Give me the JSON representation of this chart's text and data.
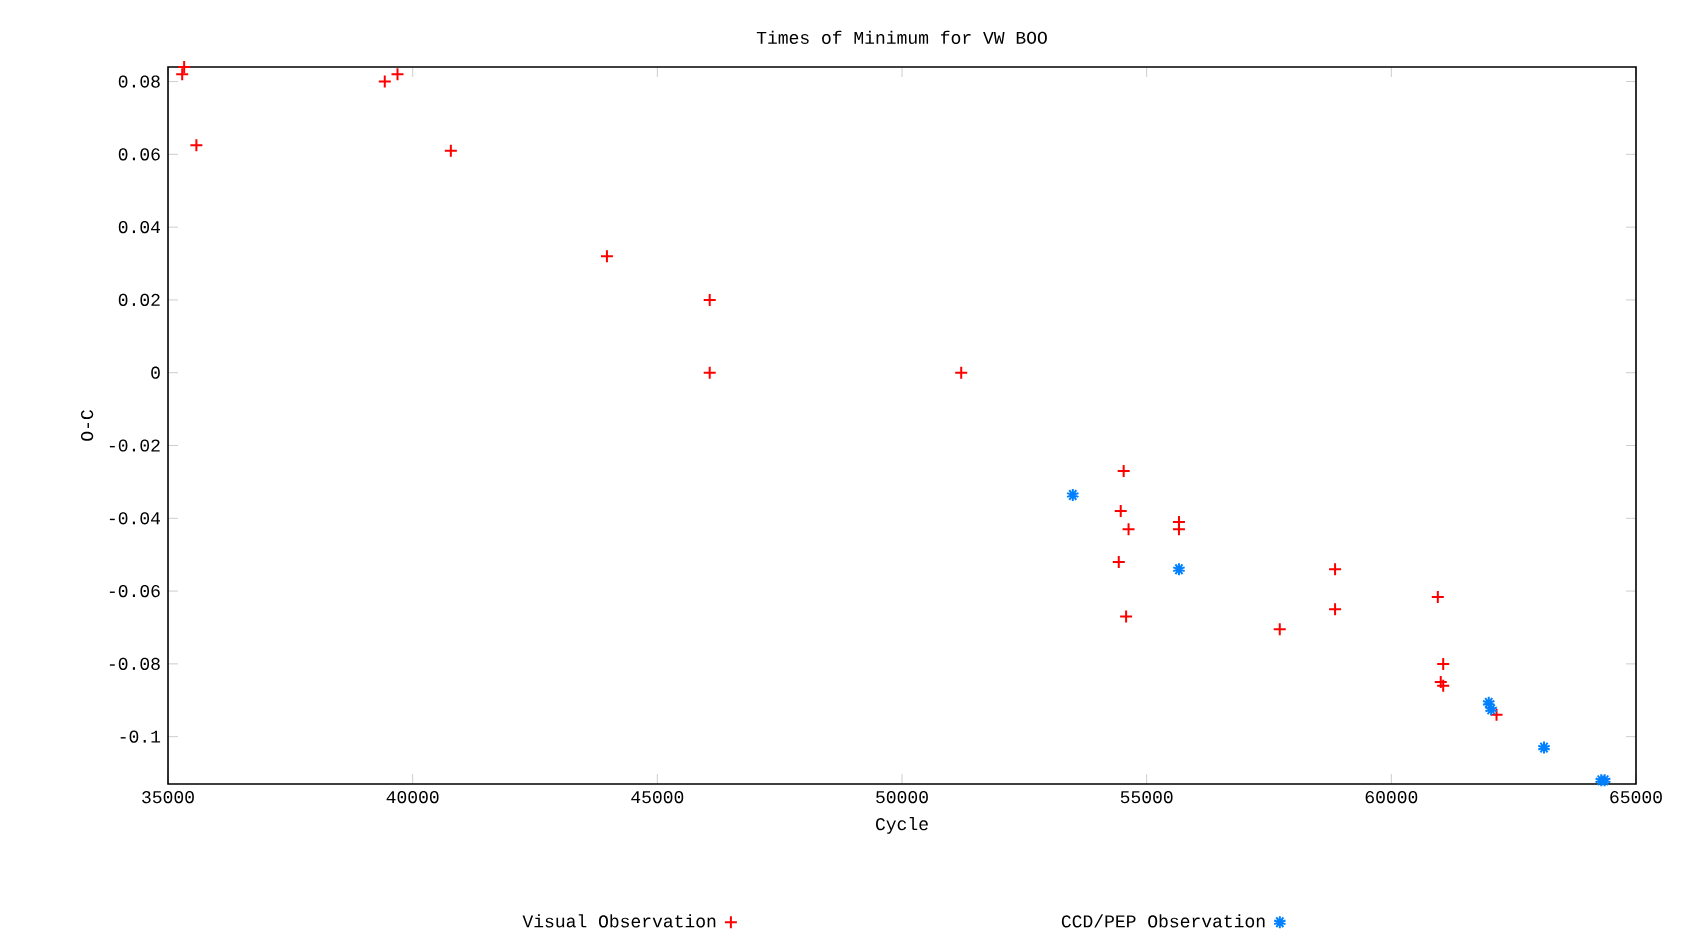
{
  "chart_data": {
    "type": "scatter",
    "title": "Times of Minimum for VW BOO",
    "xlabel": "Cycle",
    "ylabel": "O-C",
    "xlim": [
      35000,
      65000
    ],
    "ylim": [
      -0.113,
      0.084
    ],
    "xticks": [
      35000,
      40000,
      45000,
      50000,
      55000,
      60000,
      65000
    ],
    "yticks": [
      -0.1,
      -0.08,
      -0.06,
      -0.04,
      -0.02,
      0,
      0.02,
      0.04,
      0.06,
      0.08
    ],
    "grid": false,
    "legend": "bottom",
    "series": [
      {
        "name": "Visual Observation",
        "color": "#ff0000",
        "marker": "cross",
        "x": [
          35330,
          35290,
          35580,
          39430,
          39690,
          40780,
          43970,
          46070,
          46070,
          51210,
          54530,
          54470,
          54630,
          54430,
          54580,
          55660,
          55660,
          57720,
          58850,
          58850,
          60950,
          61060,
          61010,
          61060,
          62150
        ],
        "values": [
          0.084,
          0.082,
          0.0625,
          0.08,
          0.082,
          0.061,
          0.032,
          0.02,
          0,
          0,
          -0.027,
          -0.038,
          -0.043,
          -0.052,
          -0.067,
          -0.041,
          -0.043,
          -0.0705,
          -0.054,
          -0.065,
          -0.0616,
          -0.08,
          -0.085,
          -0.086,
          -0.094
        ]
      },
      {
        "name": "CCD/PEP Observation",
        "color": "#0080ff",
        "x": [
          53490,
          55660,
          61990,
          62040,
          63120,
          64290,
          64360
        ],
        "values": [
          -0.0336,
          -0.054,
          -0.0907,
          -0.0925,
          -0.103,
          -0.112,
          -0.112
        ]
      }
    ]
  }
}
